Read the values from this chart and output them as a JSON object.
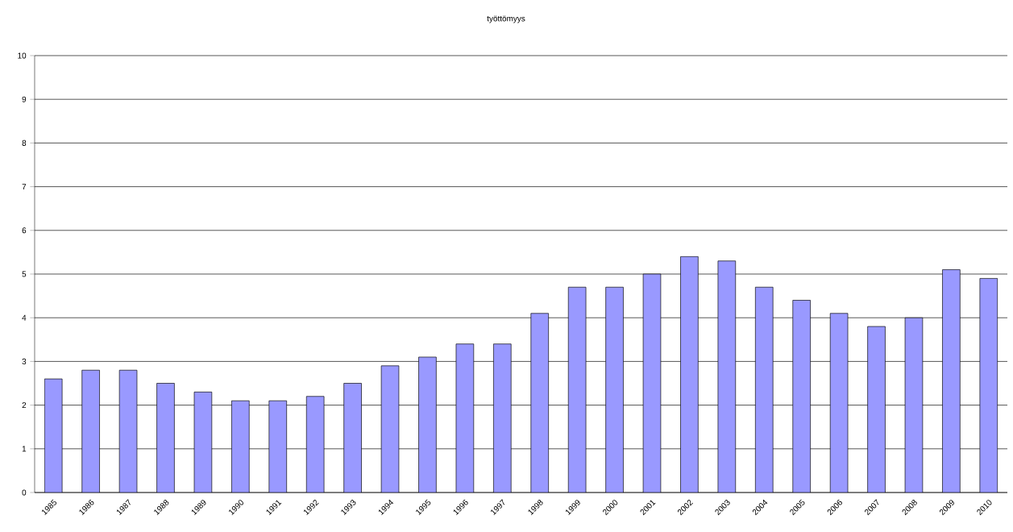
{
  "chart_data": {
    "type": "bar",
    "title": "työttömyys",
    "categories": [
      "1985",
      "1986",
      "1987",
      "1988",
      "1989",
      "1990",
      "1991",
      "1992",
      "1993",
      "1994",
      "1995",
      "1996",
      "1997",
      "1998",
      "1999",
      "2000",
      "2001",
      "2002",
      "2003",
      "2004",
      "2005",
      "2006",
      "2007",
      "2008",
      "2009",
      "2010"
    ],
    "values": [
      2.6,
      2.8,
      2.8,
      2.5,
      2.3,
      2.1,
      2.1,
      2.2,
      2.5,
      2.9,
      3.1,
      3.4,
      3.4,
      4.1,
      4.7,
      4.7,
      5.0,
      5.4,
      5.3,
      4.7,
      4.4,
      4.1,
      3.8,
      4.0,
      5.1,
      4.9
    ],
    "color": "#9999ff",
    "ylim": [
      0,
      10
    ],
    "yticks": [
      0,
      1,
      2,
      3,
      4,
      5,
      6,
      7,
      8,
      9,
      10
    ],
    "grid": "y"
  }
}
